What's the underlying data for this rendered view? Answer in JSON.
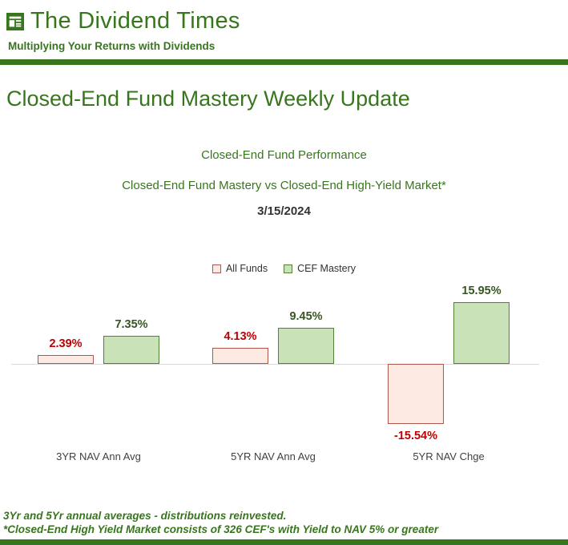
{
  "masthead": {
    "title": "The Dividend Times",
    "tagline": "Multiplying Your Returns with Dividends"
  },
  "page_title": "Closed-End Fund Mastery Weekly Update",
  "chart_data": {
    "type": "bar",
    "title": "Closed-End Fund Performance",
    "subtitle": "Closed-End Fund Mastery vs Closed-End High-Yield Market*",
    "date": "3/15/2024",
    "categories": [
      "3YR NAV Ann Avg",
      "5YR NAV Ann Avg",
      "5YR NAV Chge"
    ],
    "series": [
      {
        "name": "All Funds",
        "values": [
          2.39,
          4.13,
          -15.54
        ],
        "labels": [
          "2.39%",
          "4.13%",
          "-15.54%"
        ],
        "fill": "#fdeae3",
        "border": "#b0564a",
        "label_color": "#c00000"
      },
      {
        "name": "CEF Mastery",
        "values": [
          7.35,
          9.45,
          15.95
        ],
        "labels": [
          "7.35%",
          "9.45%",
          "15.95%"
        ],
        "fill": "#c9e2b8",
        "border": "#538135",
        "label_color": "#375623"
      }
    ],
    "ylim": [
      -18,
      18
    ],
    "grid": false,
    "legend_position": "top-center"
  },
  "footnotes": [
    "3Yr and 5Yr annual averages - distributions reinvested.",
    "*Closed-End High Yield Market consists of 326 CEF's with Yield to NAV 5% or greater"
  ],
  "colors": {
    "green": "#38761d",
    "green_dark": "#375623",
    "red": "#c00000",
    "all_funds_fill": "#fdeae3",
    "all_funds_border": "#b0564a",
    "cef_mastery_fill": "#c9e2b8",
    "cef_mastery_border": "#538135"
  }
}
